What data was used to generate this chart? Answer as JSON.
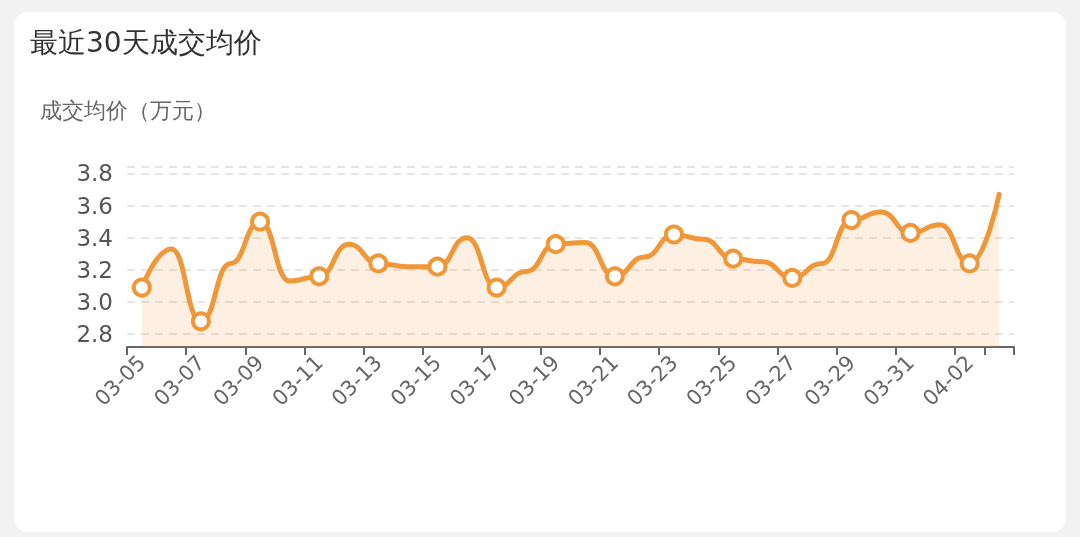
{
  "chart_data": {
    "type": "area",
    "title": "最近30天成交均价",
    "ylabel": "成交均价（万元）",
    "categories": [
      "03-05",
      null,
      "03-07",
      null,
      "03-09",
      null,
      "03-11",
      null,
      "03-13",
      null,
      "03-15",
      null,
      "03-17",
      null,
      "03-19",
      null,
      "03-21",
      null,
      "03-23",
      null,
      "03-25",
      null,
      "03-27",
      null,
      "03-29",
      null,
      "03-31",
      null,
      "04-02",
      null
    ],
    "series": [
      {
        "color": "#f0973a",
        "values": [
          3.09,
          3.33,
          2.88,
          3.24,
          3.5,
          3.13,
          3.16,
          3.36,
          3.24,
          3.22,
          3.22,
          3.4,
          3.09,
          3.19,
          3.36,
          3.37,
          3.16,
          3.28,
          3.42,
          3.39,
          3.27,
          3.25,
          3.15,
          3.24,
          3.51,
          3.56,
          3.43,
          3.48,
          3.24,
          3.67
        ]
      }
    ],
    "ylim": [
      2.72,
      3.84
    ],
    "yticks": [
      2.8,
      {
        "value": 3.0,
        "label": "3.0"
      },
      3.2,
      3.4,
      3.6,
      3.8,
      {
        "value": 3.84,
        "label": null
      }
    ],
    "grid": "y",
    "marker": "circle",
    "line_style": "solid"
  }
}
